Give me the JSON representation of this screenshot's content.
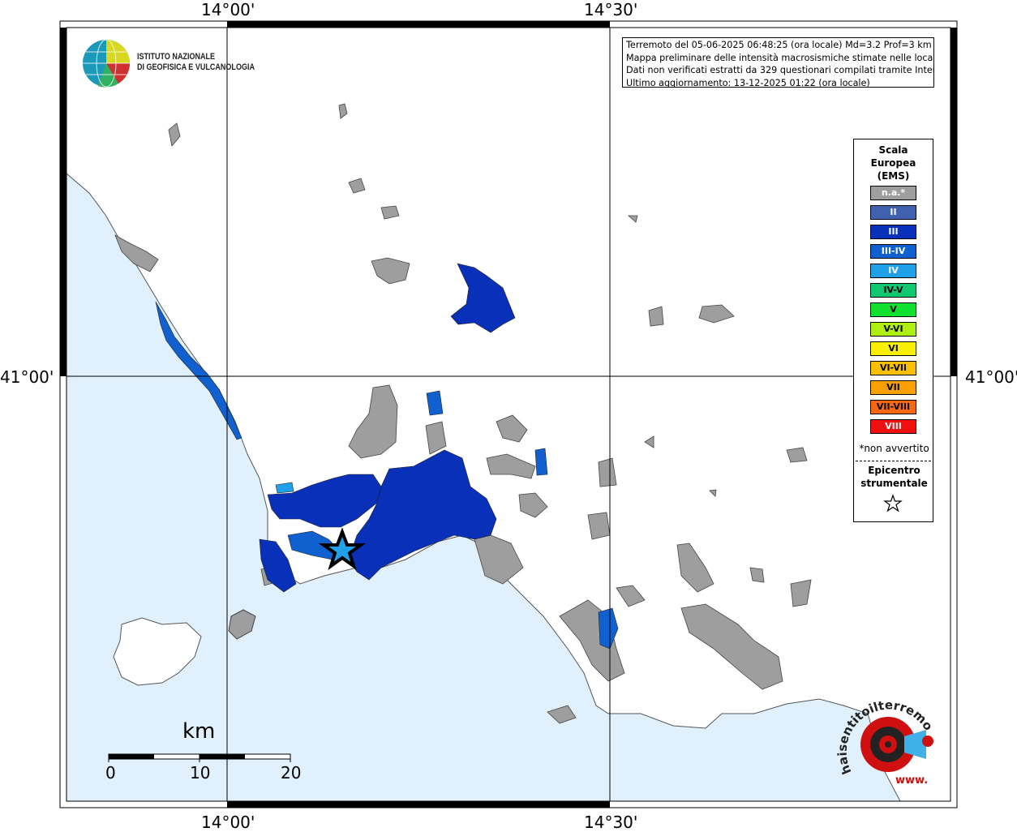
{
  "coordinates": {
    "top_left": "14°00'",
    "top_right": "14°30'",
    "bottom_left": "14°00'",
    "bottom_right": "14°30'",
    "left_lat": "41°00'",
    "right_lat": "41°00'"
  },
  "logo": {
    "line1": "ISTITUTO NAZIONALE",
    "line2": "DI GEOFISICA E VULCANOLOGIA"
  },
  "info": {
    "line1": "Terremoto del 05-06-2025 06:48:25 (ora locale) Md=3.2 Prof=3 km",
    "line2": "Mappa preliminare delle intensità macrosismiche stimate nelle località",
    "line3": "Dati non verificati estratti da 329 questionari compilati tramite Internet.",
    "line4": "Ultimo aggiornamento: 13-12-2025 01:22 (ora locale)"
  },
  "legend": {
    "title_line1": "Scala",
    "title_line2": "Europea",
    "title_line3": "(EMS)",
    "items": [
      {
        "label": "n.a.*",
        "color": "#9e9e9e",
        "text_color": "#ffffff"
      },
      {
        "label": "II",
        "color": "#4060b0",
        "text_color": "#ffffff"
      },
      {
        "label": "III",
        "color": "#0830b8",
        "text_color": "#ffffff"
      },
      {
        "label": "III-IV",
        "color": "#1060d0",
        "text_color": "#ffffff"
      },
      {
        "label": "IV",
        "color": "#20a0e8",
        "text_color": "#ffffff"
      },
      {
        "label": "IV-V",
        "color": "#10c870",
        "text_color": "#000000"
      },
      {
        "label": "V",
        "color": "#10e030",
        "text_color": "#000000"
      },
      {
        "label": "V-VI",
        "color": "#b0f010",
        "text_color": "#000000"
      },
      {
        "label": "VI",
        "color": "#f8f000",
        "text_color": "#000000"
      },
      {
        "label": "VI-VII",
        "color": "#f8c000",
        "text_color": "#000000"
      },
      {
        "label": "VII",
        "color": "#f8a000",
        "text_color": "#000000"
      },
      {
        "label": "VII-VIII",
        "color": "#f86810",
        "text_color": "#000000"
      },
      {
        "label": "VIII",
        "color": "#f01010",
        "text_color": "#ffffff"
      }
    ],
    "note": "*non avvertito",
    "epicentre_line1": "Epicentro",
    "epicentre_line2": "strumentale"
  },
  "scale_bar": {
    "title": "km",
    "labels": [
      "0",
      "10",
      "20"
    ]
  },
  "branding": {
    "text": "haisentitoilterremoto.it",
    "prefix": "www."
  },
  "colors": {
    "sea": "#e0f0fc",
    "na": "#9e9e9e",
    "III": "#0830b8",
    "III-IV": "#1060d0",
    "IV": "#20a0e8"
  }
}
